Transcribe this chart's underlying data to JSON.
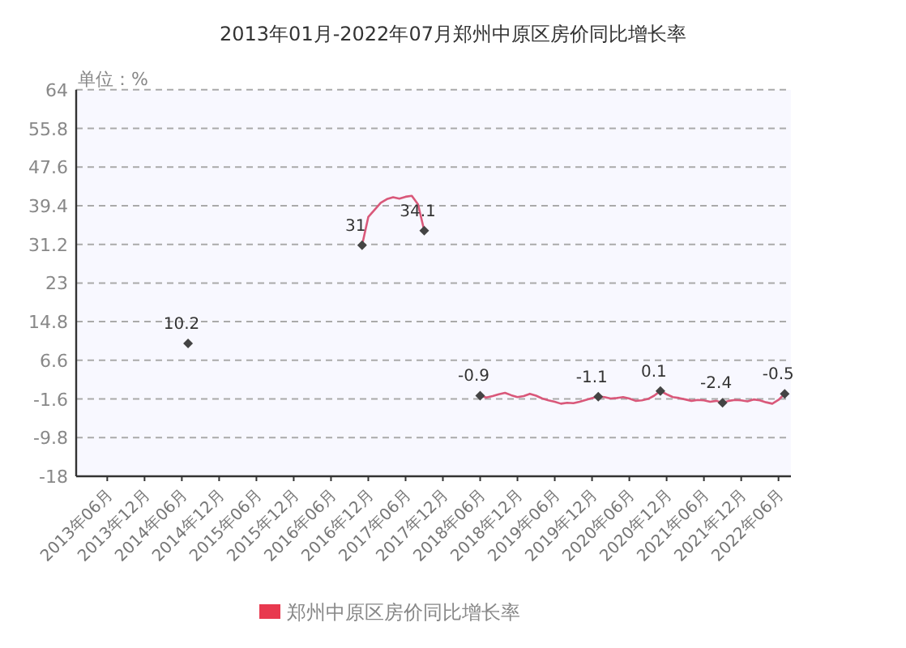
{
  "chart_data": {
    "type": "line",
    "title": "2013年01月-2022年07月郑州中原区房价同比增长率",
    "ylabel": "单位：%",
    "xlim": [
      "2013-01",
      "2022-08"
    ],
    "xticks": [
      {
        "value": "2013-06",
        "label": "2013年06月"
      },
      {
        "value": "2013-12",
        "label": "2013年12月"
      },
      {
        "value": "2014-06",
        "label": "2014年06月"
      },
      {
        "value": "2014-12",
        "label": "2014年12月"
      },
      {
        "value": "2015-06",
        "label": "2015年06月"
      },
      {
        "value": "2015-12",
        "label": "2015年12月"
      },
      {
        "value": "2016-06",
        "label": "2016年06月"
      },
      {
        "value": "2016-12",
        "label": "2016年12月"
      },
      {
        "value": "2017-06",
        "label": "2017年06月"
      },
      {
        "value": "2017-12",
        "label": "2017年12月"
      },
      {
        "value": "2018-06",
        "label": "2018年06月"
      },
      {
        "value": "2018-12",
        "label": "2018年12月"
      },
      {
        "value": "2019-06",
        "label": "2019年06月"
      },
      {
        "value": "2019-12",
        "label": "2019年12月"
      },
      {
        "value": "2020-06",
        "label": "2020年06月"
      },
      {
        "value": "2020-12",
        "label": "2020年12月"
      },
      {
        "value": "2021-06",
        "label": "2021年06月"
      },
      {
        "value": "2021-12",
        "label": "2021年12月"
      },
      {
        "value": "2022-06",
        "label": "2022年06月"
      }
    ],
    "ylim": [
      -18,
      64
    ],
    "yticks": [
      -18,
      -9.8,
      -1.6,
      6.6,
      14.8,
      23,
      31.2,
      39.4,
      47.6,
      55.8,
      64
    ],
    "grid": "y",
    "legend": "bottom",
    "series": [
      {
        "name": "郑州中原区房价同比增长率",
        "type": "line",
        "color": "#d9587a",
        "marker": "none",
        "x": [
          "2016-11",
          "2016-12",
          "2017-01",
          "2017-02",
          "2017-03",
          "2017-04",
          "2017-05",
          "2017-06",
          "2017-07",
          "2017-08",
          "2017-09",
          "2017-10",
          "2018-06",
          "2018-07",
          "2018-08",
          "2018-09",
          "2018-10",
          "2018-11",
          "2018-12",
          "2019-01",
          "2019-02",
          "2019-03",
          "2019-04",
          "2019-05",
          "2019-06",
          "2019-07",
          "2019-08",
          "2019-09",
          "2019-10",
          "2019-11",
          "2019-12",
          "2020-01",
          "2020-02",
          "2020-03",
          "2020-04",
          "2020-05",
          "2020-06",
          "2020-07",
          "2020-08",
          "2020-09",
          "2020-10",
          "2020-11",
          "2020-12",
          "2021-01",
          "2021-02",
          "2021-03",
          "2021-04",
          "2021-05",
          "2021-06",
          "2021-07",
          "2021-08",
          "2021-09",
          "2021-10",
          "2021-11",
          "2021-12",
          "2022-01",
          "2022-02",
          "2022-03",
          "2022-04",
          "2022-05",
          "2022-06",
          "2022-07"
        ],
        "values": [
          31,
          37,
          38.5,
          40,
          40.8,
          41.2,
          40.9,
          41.3,
          41.5,
          39.7,
          34.1,
          null,
          -0.9,
          -1.3,
          -1.0,
          -0.6,
          -0.3,
          -0.8,
          -1.2,
          -1.0,
          -0.5,
          -0.9,
          -1.5,
          -1.9,
          -2.2,
          -2.6,
          -2.4,
          -2.5,
          -2.2,
          -1.8,
          -1.4,
          -1.1,
          -1.2,
          -1.5,
          -1.4,
          -1.2,
          -1.5,
          -2.0,
          -1.9,
          -1.6,
          -0.9,
          0.1,
          -0.6,
          -1.2,
          -1.4,
          -1.7,
          -2.0,
          -1.8,
          -1.9,
          -2.2,
          -2.0,
          -2.4,
          -2.0,
          -1.8,
          -1.9,
          -2.1,
          -1.7,
          -1.9,
          -2.3,
          -2.6,
          -1.8,
          -0.5
        ]
      },
      {
        "type": "scatter",
        "color": "#444444",
        "marker": "diamond",
        "x": [
          "2014-07",
          "2016-11",
          "2017-09",
          "2018-06",
          "2020-01",
          "2020-11",
          "2021-09",
          "2022-07"
        ],
        "values": [
          10.2,
          31,
          34.1,
          -0.9,
          -1.1,
          0.1,
          -2.4,
          -0.5
        ],
        "data_labels": true
      }
    ]
  }
}
